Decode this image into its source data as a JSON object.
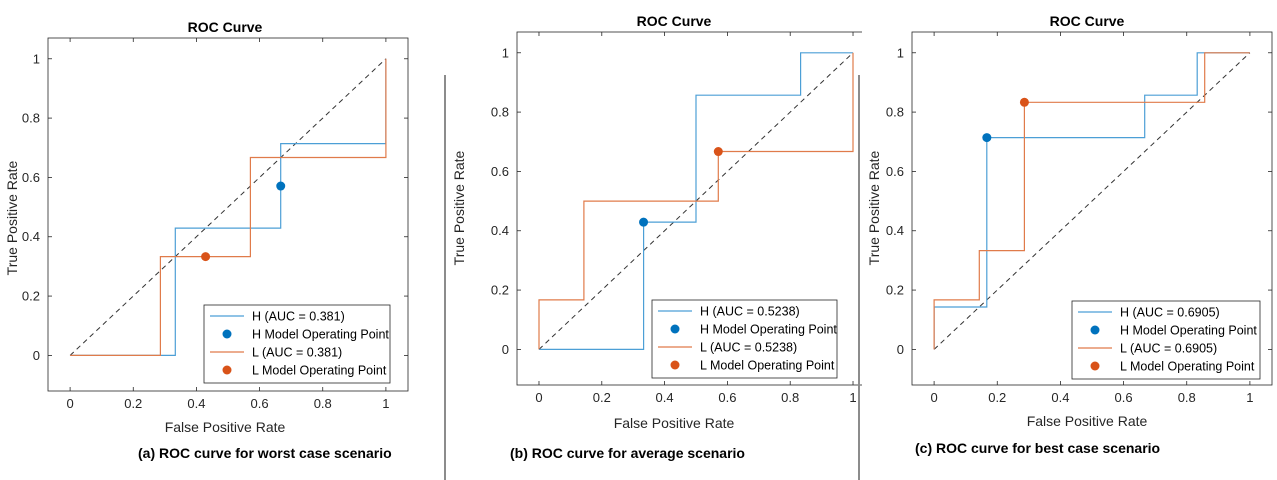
{
  "figure": {
    "captions": [
      "(a) ROC curve for worst case scenario",
      "(b) ROC curve for average scenario",
      "(c) ROC curve for best case scenario"
    ]
  },
  "colors": {
    "h_series": "#4c9fd6",
    "l_series": "#e07b4a",
    "h_point": "#0072bd",
    "l_point": "#d95319",
    "diagonal": "#333333"
  },
  "chart_data": [
    {
      "type": "line",
      "title": "ROC Curve",
      "xlabel": "False Positive Rate",
      "ylabel": "True Positive Rate",
      "xlim": [
        -0.07,
        1.07
      ],
      "ylim": [
        -0.12,
        1.07
      ],
      "xticks": [
        0,
        0.2,
        0.4,
        0.6,
        0.8,
        1
      ],
      "yticks": [
        0,
        0.2,
        0.4,
        0.6,
        0.8,
        1
      ],
      "xtick_labels": [
        "0",
        "0.2",
        "0.4",
        "0.6",
        "0.8",
        "1"
      ],
      "ytick_labels": [
        "0",
        "0.2",
        "0.4",
        "0.6",
        "0.8",
        "1"
      ],
      "grid": false,
      "legend_position": "bottom-right",
      "diagonal": true,
      "series": [
        {
          "name": "H (AUC = 0.381)",
          "color_key": "h_series",
          "x": [
            0,
            0.333,
            0.333,
            0.667,
            0.667,
            1,
            1
          ],
          "y": [
            0,
            0,
            0.429,
            0.429,
            0.714,
            0.714,
            1
          ]
        },
        {
          "name": "L (AUC = 0.381)",
          "color_key": "l_series",
          "x": [
            0,
            0.286,
            0.286,
            0.571,
            0.571,
            1,
            1
          ],
          "y": [
            0,
            0,
            0.333,
            0.333,
            0.667,
            0.667,
            1
          ]
        }
      ],
      "points": [
        {
          "name": "H Model Operating Point",
          "color_key": "h_point",
          "x": 0.667,
          "y": 0.571
        },
        {
          "name": "L Model Operating Point",
          "color_key": "l_point",
          "x": 0.429,
          "y": 0.333
        }
      ],
      "legend": [
        "H (AUC = 0.381)",
        "H Model Operating Point",
        "L (AUC = 0.381)",
        "L Model Operating Point"
      ]
    },
    {
      "type": "line",
      "title": "ROC Curve",
      "xlabel": "False Positive Rate",
      "ylabel": "True Positive Rate",
      "xlim": [
        -0.07,
        1.07
      ],
      "ylim": [
        -0.12,
        1.07
      ],
      "xticks": [
        0,
        0.2,
        0.4,
        0.6,
        0.8,
        1
      ],
      "yticks": [
        0,
        0.2,
        0.4,
        0.6,
        0.8,
        1
      ],
      "xtick_labels": [
        "0",
        "0.2",
        "0.4",
        "0.6",
        "0.8",
        "1"
      ],
      "ytick_labels": [
        "0",
        "0.2",
        "0.4",
        "0.6",
        "0.8",
        "1"
      ],
      "grid": false,
      "legend_position": "bottom-right",
      "diagonal": true,
      "series": [
        {
          "name": "H (AUC = 0.5238)",
          "color_key": "h_series",
          "x": [
            0,
            0.333,
            0.333,
            0.5,
            0.5,
            0.833,
            0.833,
            1,
            1
          ],
          "y": [
            0,
            0,
            0.429,
            0.429,
            0.857,
            0.857,
            1,
            1,
            1
          ]
        },
        {
          "name": "L (AUC = 0.5238)",
          "color_key": "l_series",
          "x": [
            0,
            0,
            0.143,
            0.143,
            0.571,
            0.571,
            1,
            1
          ],
          "y": [
            0,
            0.167,
            0.167,
            0.5,
            0.5,
            0.667,
            0.667,
            1
          ]
        }
      ],
      "points": [
        {
          "name": "H Model Operating Point",
          "color_key": "h_point",
          "x": 0.333,
          "y": 0.429
        },
        {
          "name": "L Model Operating Point",
          "color_key": "l_point",
          "x": 0.571,
          "y": 0.667
        }
      ],
      "legend": [
        "H (AUC = 0.5238)",
        "H Model Operating Point",
        "L (AUC = 0.5238)",
        "L Model Operating Point"
      ]
    },
    {
      "type": "line",
      "title": "ROC Curve",
      "xlabel": "False Positive Rate",
      "ylabel": "True Positive Rate",
      "xlim": [
        -0.07,
        1.07
      ],
      "ylim": [
        -0.12,
        1.07
      ],
      "xticks": [
        0,
        0.2,
        0.4,
        0.6,
        0.8,
        1
      ],
      "yticks": [
        0,
        0.2,
        0.4,
        0.6,
        0.8,
        1
      ],
      "xtick_labels": [
        "0",
        "0.2",
        "0.4",
        "0.6",
        "0.8",
        "1"
      ],
      "ytick_labels": [
        "0",
        "0.2",
        "0.4",
        "0.6",
        "0.8",
        "1"
      ],
      "grid": false,
      "legend_position": "bottom-right",
      "diagonal": true,
      "series": [
        {
          "name": "H (AUC = 0.6905)",
          "color_key": "h_series",
          "x": [
            0,
            0,
            0.167,
            0.167,
            0.667,
            0.667,
            0.833,
            0.833,
            1
          ],
          "y": [
            0,
            0.143,
            0.143,
            0.714,
            0.714,
            0.857,
            0.857,
            1,
            1
          ]
        },
        {
          "name": "L (AUC = 0.6905)",
          "color_key": "l_series",
          "x": [
            0,
            0,
            0.143,
            0.143,
            0.286,
            0.286,
            0.857,
            0.857,
            1
          ],
          "y": [
            0,
            0.167,
            0.167,
            0.333,
            0.333,
            0.833,
            0.833,
            1,
            1
          ]
        }
      ],
      "points": [
        {
          "name": "H Model Operating Point",
          "color_key": "h_point",
          "x": 0.167,
          "y": 0.714
        },
        {
          "name": "L Model Operating Point",
          "color_key": "l_point",
          "x": 0.286,
          "y": 0.833
        }
      ],
      "legend": [
        "H (AUC = 0.6905)",
        "H Model Operating Point",
        "L (AUC = 0.6905)",
        "L Model Operating Point"
      ]
    }
  ]
}
